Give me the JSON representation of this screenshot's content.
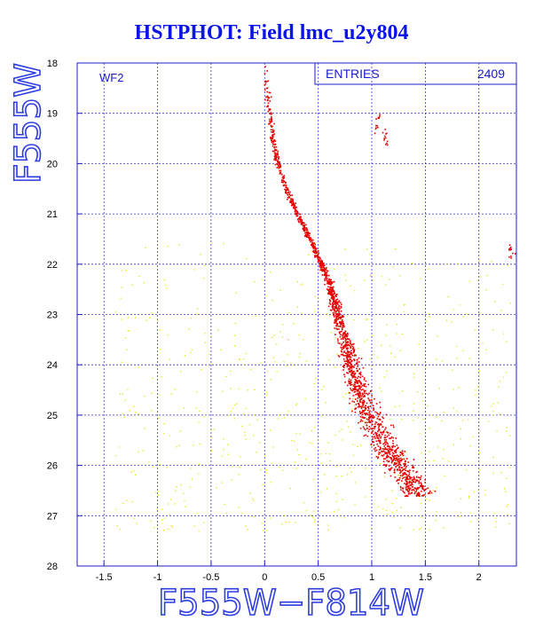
{
  "header": {
    "title": "HSTPHOT: Field lmc_u2y804"
  },
  "colors": {
    "frame": "#1c1ccd",
    "grid": "#3838d8",
    "main_sequence": "#e60000",
    "field": "#e6e600",
    "title": "#0a14e6"
  },
  "chart_data": {
    "type": "scatter",
    "title": "HSTPHOT: Field lmc_u2y804",
    "xlabel": "F555W−F814W",
    "ylabel": "F555W",
    "xlim": [
      -1.75,
      2.35
    ],
    "ylim": [
      28,
      18
    ],
    "y_inverted": true,
    "x_ticks": [
      -1.5,
      -1,
      -0.5,
      0,
      0.5,
      1,
      1.5,
      2
    ],
    "x_tick_labels": [
      "-1.5",
      "-1",
      "-0.5",
      "0",
      "0.5",
      "1",
      "1.5",
      "2"
    ],
    "y_ticks": [
      18,
      19,
      20,
      21,
      22,
      23,
      24,
      25,
      26,
      27,
      28
    ],
    "y_tick_labels": [
      "18",
      "19",
      "20",
      "21",
      "22",
      "23",
      "24",
      "25",
      "26",
      "27",
      "28"
    ],
    "grid": true,
    "panel_label": "WF2",
    "stats": {
      "label": "ENTRIES",
      "value": "2409"
    },
    "series": [
      {
        "color": "red",
        "description_points": "stellar main sequence and turn-off, traced as color vs magnitude",
        "ridge": [
          {
            "x": 0.0,
            "y": 18.0
          },
          {
            "x": 0.02,
            "y": 18.5
          },
          {
            "x": 0.04,
            "y": 19.0
          },
          {
            "x": 0.07,
            "y": 19.5
          },
          {
            "x": 0.12,
            "y": 20.0
          },
          {
            "x": 0.2,
            "y": 20.5
          },
          {
            "x": 0.3,
            "y": 21.0
          },
          {
            "x": 0.42,
            "y": 21.5
          },
          {
            "x": 0.53,
            "y": 22.0
          },
          {
            "x": 0.62,
            "y": 22.5
          },
          {
            "x": 0.68,
            "y": 23.0
          },
          {
            "x": 0.74,
            "y": 23.5
          },
          {
            "x": 0.8,
            "y": 24.0
          },
          {
            "x": 0.88,
            "y": 24.5
          },
          {
            "x": 0.97,
            "y": 25.0
          },
          {
            "x": 1.1,
            "y": 25.5
          },
          {
            "x": 1.25,
            "y": 26.0
          },
          {
            "x": 1.4,
            "y": 26.4
          }
        ],
        "clumps": [
          {
            "x": 1.05,
            "y": 19.2
          },
          {
            "x": 1.12,
            "y": 19.5
          },
          {
            "x": 2.3,
            "y": 21.7
          }
        ],
        "count": 1800
      },
      {
        "color": "yellow",
        "description_points": "scattered field stars",
        "count": 600
      }
    ]
  }
}
